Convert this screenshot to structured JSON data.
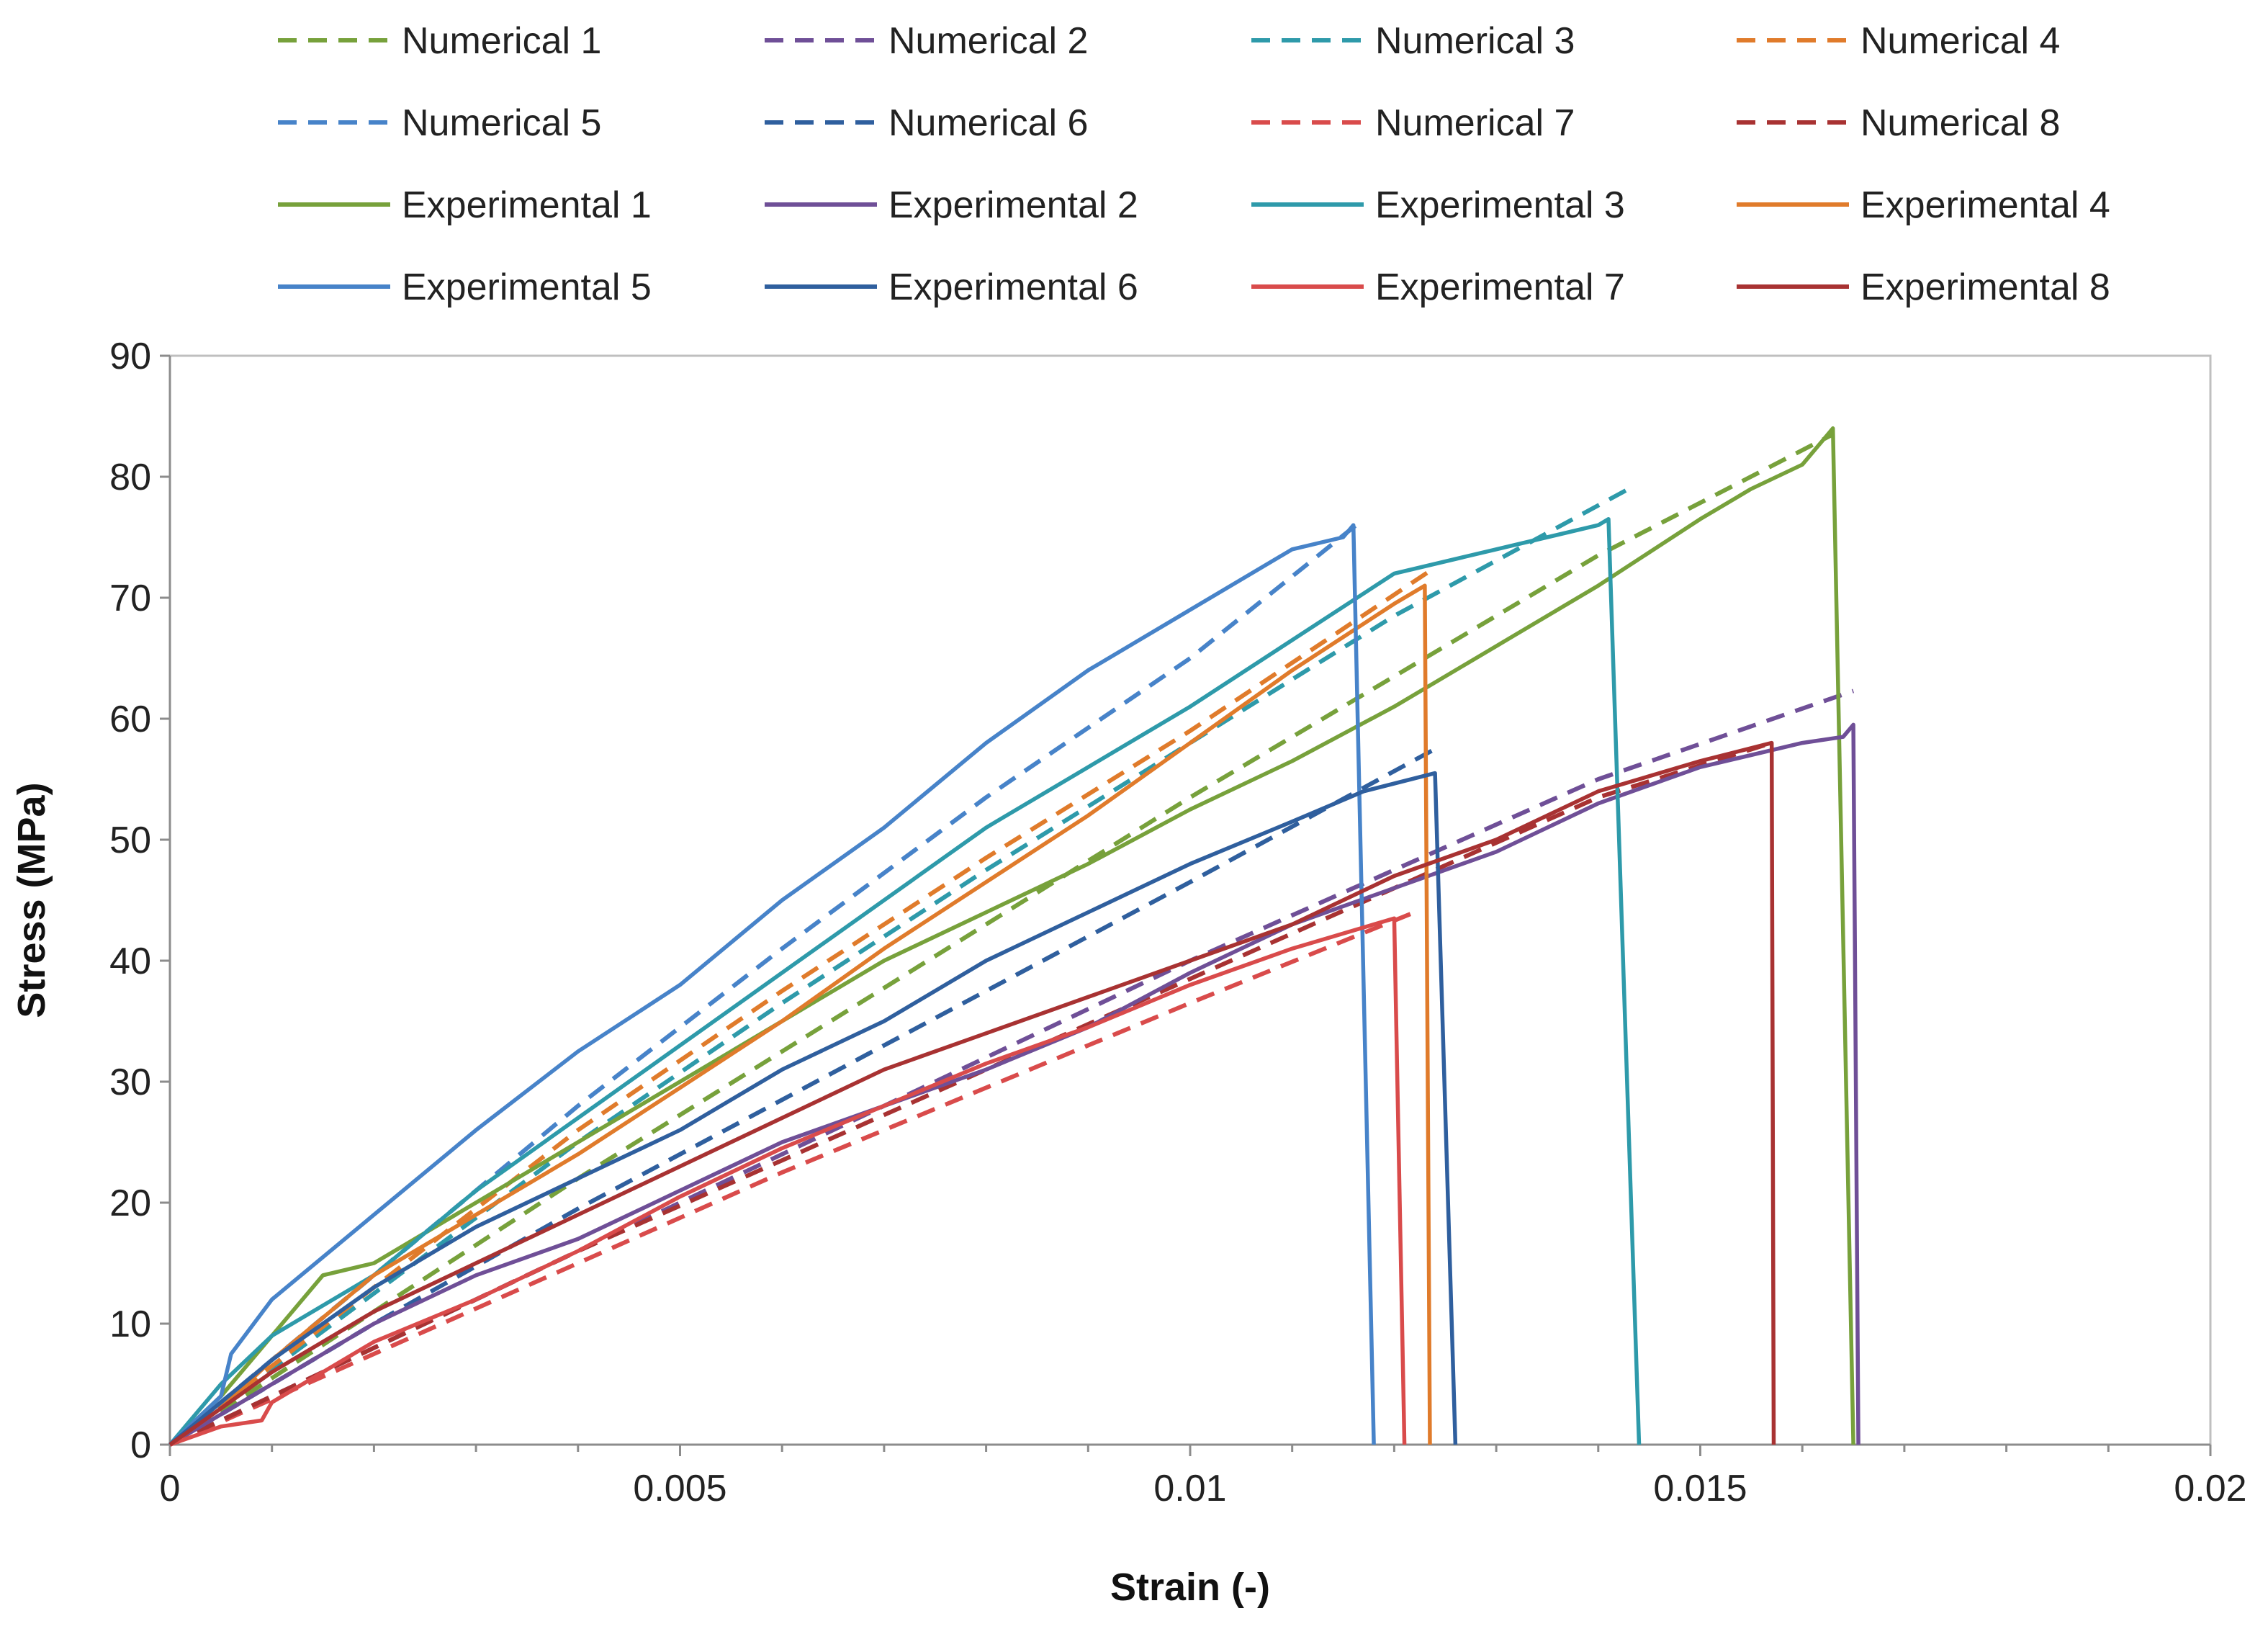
{
  "chart_data": {
    "type": "line",
    "title": "",
    "xlabel": "Strain (-)",
    "ylabel": "Stress (MPa)",
    "xlim": [
      0,
      0.02
    ],
    "ylim": [
      0,
      90
    ],
    "x_ticks": [
      0,
      0.005,
      0.01,
      0.015,
      0.02
    ],
    "x_tick_labels": [
      "0",
      "0.005",
      "0.01",
      "0.015",
      "0.02"
    ],
    "y_ticks": [
      0,
      10,
      20,
      30,
      40,
      50,
      60,
      70,
      80,
      90
    ],
    "y_tick_labels": [
      "0",
      "10",
      "20",
      "30",
      "40",
      "50",
      "60",
      "70",
      "80",
      "90"
    ],
    "legend_position": "top",
    "grid": false,
    "series": [
      {
        "name": "Numerical 1",
        "style": "dashed",
        "color": "#77a13b",
        "x": [
          0,
          0.002,
          0.004,
          0.006,
          0.008,
          0.01,
          0.012,
          0.014,
          0.0163
        ],
        "y": [
          0,
          11,
          22,
          32.5,
          43,
          53.5,
          63.5,
          73.5,
          83.5
        ]
      },
      {
        "name": "Numerical 2",
        "style": "dashed",
        "color": "#6f4f97",
        "x": [
          0,
          0.002,
          0.004,
          0.006,
          0.008,
          0.01,
          0.012,
          0.014,
          0.0165
        ],
        "y": [
          0,
          8,
          16,
          24,
          32,
          40,
          47.5,
          55,
          62.3
        ]
      },
      {
        "name": "Numerical 3",
        "style": "dashed",
        "color": "#2e9aaa",
        "x": [
          0,
          0.002,
          0.004,
          0.006,
          0.008,
          0.01,
          0.012,
          0.0143
        ],
        "y": [
          0,
          12.5,
          25,
          36.5,
          47.5,
          58,
          68.5,
          79
        ]
      },
      {
        "name": "Numerical 4",
        "style": "dashed",
        "color": "#e07b2b",
        "x": [
          0,
          0.002,
          0.004,
          0.006,
          0.008,
          0.01,
          0.0124
        ],
        "y": [
          0,
          13,
          26,
          37.5,
          48.5,
          59,
          72.5
        ]
      },
      {
        "name": "Numerical 5",
        "style": "dashed",
        "color": "#4783c9",
        "x": [
          0,
          0.002,
          0.004,
          0.006,
          0.008,
          0.01,
          0.0117
        ],
        "y": [
          0,
          14,
          28,
          41,
          53.5,
          65,
          76.5
        ]
      },
      {
        "name": "Numerical 6",
        "style": "dashed",
        "color": "#2f5f9e",
        "x": [
          0,
          0.002,
          0.004,
          0.006,
          0.008,
          0.01,
          0.0124
        ],
        "y": [
          0,
          10,
          19.5,
          28.5,
          37.5,
          46.5,
          57.5
        ]
      },
      {
        "name": "Numerical 7",
        "style": "dashed",
        "color": "#d94b4b",
        "x": [
          0,
          0.002,
          0.004,
          0.006,
          0.008,
          0.01,
          0.0122
        ],
        "y": [
          0,
          7.5,
          15,
          22.5,
          29.5,
          36.5,
          44
        ]
      },
      {
        "name": "Numerical 8",
        "style": "dashed",
        "color": "#a83232",
        "x": [
          0,
          0.002,
          0.004,
          0.006,
          0.008,
          0.01,
          0.012,
          0.014,
          0.0157
        ],
        "y": [
          0,
          8,
          16,
          23.5,
          31,
          38.5,
          46,
          53.5,
          58
        ]
      },
      {
        "name": "Experimental 1",
        "style": "solid",
        "color": "#77a13b",
        "x": [
          0,
          0.0005,
          0.001,
          0.0015,
          0.002,
          0.003,
          0.004,
          0.005,
          0.006,
          0.007,
          0.008,
          0.009,
          0.01,
          0.011,
          0.012,
          0.013,
          0.014,
          0.015,
          0.0155,
          0.016,
          0.0163,
          0.0165
        ],
        "y": [
          0,
          4,
          9,
          14,
          15,
          20,
          25,
          30,
          35,
          40,
          44,
          48,
          52.5,
          56.5,
          61,
          66,
          71,
          76.5,
          79,
          81,
          84,
          0
        ]
      },
      {
        "name": "Experimental 2",
        "style": "solid",
        "color": "#6f4f97",
        "x": [
          0,
          0.001,
          0.002,
          0.003,
          0.004,
          0.005,
          0.006,
          0.007,
          0.008,
          0.009,
          0.01,
          0.011,
          0.012,
          0.013,
          0.014,
          0.015,
          0.016,
          0.0164,
          0.0165,
          0.01655
        ],
        "y": [
          0,
          5,
          10,
          14,
          17,
          21,
          25,
          28,
          31,
          34.5,
          39,
          43,
          46,
          49,
          53,
          56,
          58,
          58.5,
          59.5,
          0
        ]
      },
      {
        "name": "Experimental 3",
        "style": "solid",
        "color": "#2e9aaa",
        "x": [
          0,
          0.0005,
          0.001,
          0.002,
          0.003,
          0.004,
          0.005,
          0.006,
          0.007,
          0.008,
          0.009,
          0.01,
          0.011,
          0.012,
          0.013,
          0.014,
          0.0141,
          0.0144
        ],
        "y": [
          0,
          5,
          9,
          14,
          21,
          27,
          33,
          39,
          45,
          51,
          56,
          61,
          66.5,
          72,
          74,
          76,
          76.5,
          0
        ]
      },
      {
        "name": "Experimental 4",
        "style": "solid",
        "color": "#e07b2b",
        "x": [
          0,
          0.0005,
          0.001,
          0.002,
          0.003,
          0.004,
          0.005,
          0.006,
          0.007,
          0.008,
          0.009,
          0.01,
          0.011,
          0.012,
          0.0123,
          0.01235
        ],
        "y": [
          0,
          3,
          7,
          14,
          19,
          24,
          29.5,
          35,
          41,
          46.5,
          52,
          58,
          64,
          69.5,
          71,
          0
        ]
      },
      {
        "name": "Experimental 5",
        "style": "solid",
        "color": "#4783c9",
        "x": [
          0,
          0.0005,
          0.0006,
          0.001,
          0.0015,
          0.002,
          0.003,
          0.004,
          0.005,
          0.006,
          0.007,
          0.008,
          0.009,
          0.01,
          0.011,
          0.0115,
          0.0116,
          0.0118
        ],
        "y": [
          0,
          4,
          7.5,
          12,
          15.5,
          19,
          26,
          32.5,
          38,
          45,
          51,
          58,
          64,
          69,
          74,
          75,
          76,
          0
        ]
      },
      {
        "name": "Experimental 6",
        "style": "solid",
        "color": "#2f5f9e",
        "x": [
          0,
          0.001,
          0.002,
          0.003,
          0.004,
          0.005,
          0.006,
          0.007,
          0.008,
          0.009,
          0.01,
          0.011,
          0.0117,
          0.0124,
          0.0126
        ],
        "y": [
          0,
          7,
          13,
          18,
          22,
          26,
          31,
          35,
          40,
          44,
          48,
          51.5,
          54,
          55.5,
          0
        ]
      },
      {
        "name": "Experimental 7",
        "style": "solid",
        "color": "#d94b4b",
        "x": [
          0,
          0.0005,
          0.0009,
          0.001,
          0.0015,
          0.002,
          0.003,
          0.004,
          0.005,
          0.006,
          0.007,
          0.008,
          0.009,
          0.01,
          0.011,
          0.012,
          0.0121
        ],
        "y": [
          0,
          1.5,
          2,
          3.5,
          6,
          8.5,
          12,
          16,
          20.5,
          24.5,
          28,
          31.5,
          34.5,
          38,
          41,
          43.5,
          0
        ]
      },
      {
        "name": "Experimental 8",
        "style": "solid",
        "color": "#a83232",
        "x": [
          0,
          0.001,
          0.002,
          0.003,
          0.004,
          0.005,
          0.006,
          0.007,
          0.008,
          0.009,
          0.01,
          0.011,
          0.012,
          0.013,
          0.014,
          0.015,
          0.0157,
          0.01572
        ],
        "y": [
          0,
          6,
          11,
          15,
          19,
          23,
          27,
          31,
          34,
          37,
          40,
          43,
          47,
          50,
          54,
          56.5,
          58,
          0
        ]
      }
    ]
  }
}
